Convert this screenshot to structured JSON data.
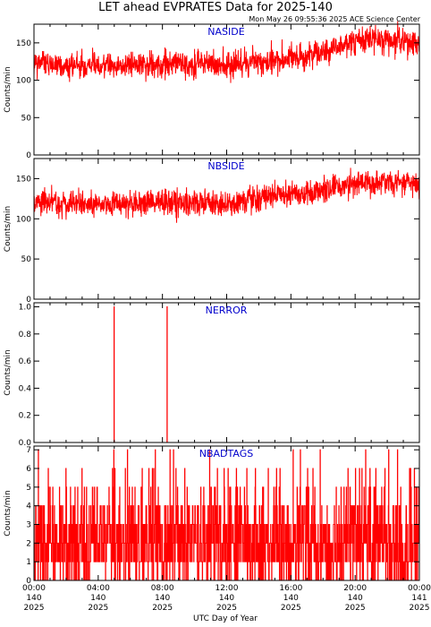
{
  "header": {
    "title": "LET ahead EVPRATES Data for 2025-140",
    "timestamp": "Mon May 26 09:55:36 2025 ACE Science Center"
  },
  "colors": {
    "series": "#ff0000",
    "panel_label": "#0000cc",
    "axis": "#000000"
  },
  "xaxis": {
    "label": "UTC Day of Year",
    "ticks": [
      {
        "time": "00:00",
        "doy": "140",
        "year": "2025"
      },
      {
        "time": "04:00",
        "doy": "140",
        "year": "2025"
      },
      {
        "time": "08:00",
        "doy": "140",
        "year": "2025"
      },
      {
        "time": "12:00",
        "doy": "140",
        "year": "2025"
      },
      {
        "time": "16:00",
        "doy": "140",
        "year": "2025"
      },
      {
        "time": "20:00",
        "doy": "140",
        "year": "2025"
      },
      {
        "time": "00:00",
        "doy": "141",
        "year": "2025"
      }
    ]
  },
  "chart_data": [
    {
      "type": "line",
      "label": "NASIDE",
      "ylabel": "Counts/min",
      "ylim": [
        0,
        175
      ],
      "yticks": [
        0,
        50,
        100,
        150
      ],
      "x_hours": [
        0,
        2,
        4,
        6,
        8,
        10,
        12,
        14,
        16,
        18,
        19,
        20,
        22,
        24
      ],
      "values": [
        123,
        120,
        122,
        120,
        121,
        120,
        121,
        125,
        130,
        137,
        145,
        153,
        155,
        151
      ],
      "noise": 9
    },
    {
      "type": "line",
      "label": "NBSIDE",
      "ylabel": "Counts/min",
      "ylim": [
        0,
        175
      ],
      "yticks": [
        0,
        50,
        100,
        150
      ],
      "x_hours": [
        0,
        2,
        4,
        6,
        8,
        10,
        12,
        13,
        14,
        16,
        18,
        20,
        22,
        24
      ],
      "values": [
        121,
        119,
        118,
        118,
        120,
        119,
        117,
        120,
        127,
        131,
        136,
        143,
        145,
        144
      ],
      "noise": 8
    },
    {
      "type": "line",
      "label": "NERROR",
      "ylabel": "Counts/min",
      "ylim": [
        0,
        1.03
      ],
      "yticks": [
        0.0,
        0.2,
        0.4,
        0.6,
        0.8,
        1.0
      ],
      "baseline": 0,
      "spikes": [
        {
          "hour": 5.0,
          "value": 1
        },
        {
          "hour": 8.3,
          "value": 1
        }
      ]
    },
    {
      "type": "line",
      "label": "NBADTAGS",
      "ylabel": "Counts/min",
      "ylim": [
        0,
        7.2
      ],
      "yticks": [
        0,
        1,
        2,
        3,
        4,
        5,
        6,
        7
      ],
      "distribution": [
        0.15,
        0.24,
        0.24,
        0.19,
        0.1,
        0.05,
        0.02,
        0.01
      ],
      "peaks": [
        {
          "hour": 0.0,
          "value": 7
        },
        {
          "hour": 16.6,
          "value": 7
        },
        {
          "hour": 23.7,
          "value": 6
        }
      ]
    }
  ]
}
